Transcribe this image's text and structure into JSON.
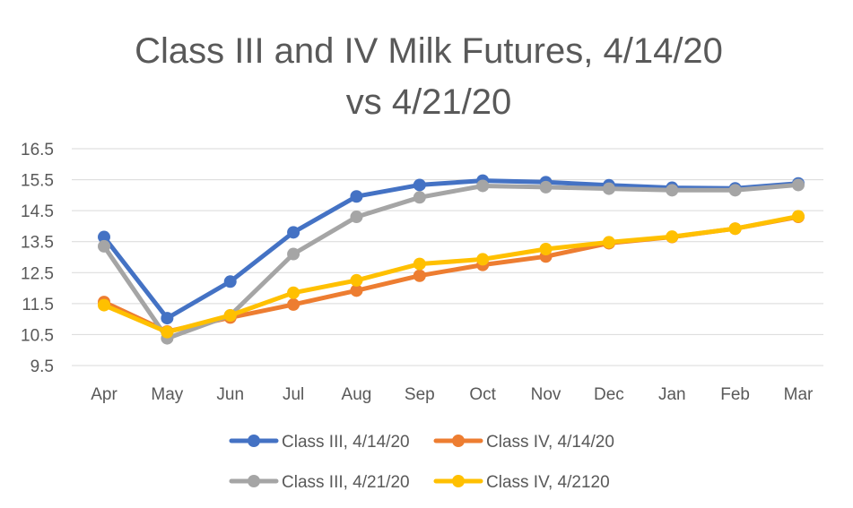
{
  "chart_data": {
    "type": "line",
    "title_lines": [
      "Class III and IV Milk Futures, 4/14/20",
      "vs 4/21/20"
    ],
    "categories": [
      "Apr",
      "May",
      "Jun",
      "Jul",
      "Aug",
      "Sep",
      "Oct",
      "Nov",
      "Dec",
      "Jan",
      "Feb",
      "Mar"
    ],
    "ylim": [
      9.5,
      16.5
    ],
    "yticks": [
      "9.5",
      "10.5",
      "11.5",
      "12.5",
      "13.5",
      "14.5",
      "15.5",
      "16.5"
    ],
    "grid": true,
    "legend_position": "bottom",
    "series": [
      {
        "name": "Class III, 4/14/20",
        "color": "#4472C4",
        "values": [
          13.65,
          11.03,
          12.21,
          13.8,
          14.96,
          15.33,
          15.47,
          15.42,
          15.32,
          15.24,
          15.22,
          15.38
        ]
      },
      {
        "name": "Class IV, 4/14/20",
        "color": "#ED7D31",
        "values": [
          11.55,
          10.6,
          11.05,
          11.47,
          11.92,
          12.4,
          12.75,
          13.02,
          13.45,
          13.65,
          13.92,
          14.3
        ]
      },
      {
        "name": "Class III, 4/21/20",
        "color": "#A5A5A5",
        "values": [
          13.35,
          10.38,
          11.12,
          13.1,
          14.3,
          14.93,
          15.3,
          15.26,
          15.21,
          15.16,
          15.16,
          15.33
        ]
      },
      {
        "name": "Class IV, 4/2120",
        "color": "#FFC000",
        "values": [
          11.45,
          10.58,
          11.12,
          11.85,
          12.25,
          12.78,
          12.93,
          13.26,
          13.48,
          13.66,
          13.92,
          14.32
        ]
      }
    ]
  }
}
